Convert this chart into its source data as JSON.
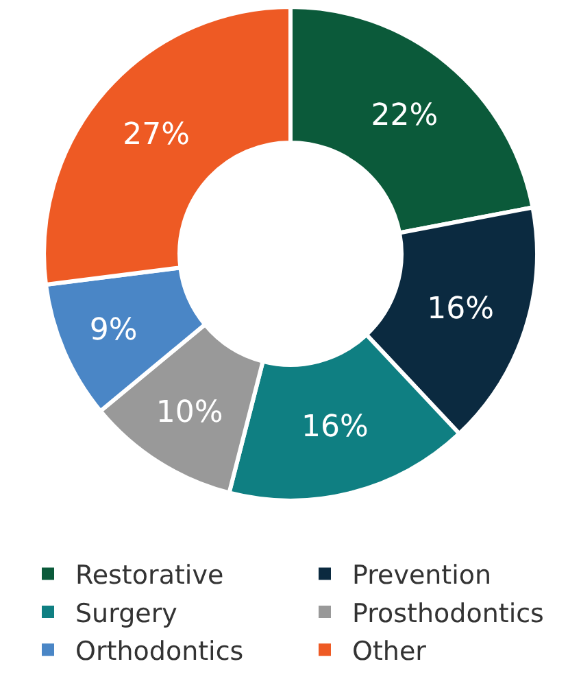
{
  "chart_data": {
    "type": "donut",
    "categories": [
      "Restorative",
      "Prevention",
      "Surgery",
      "Prosthodontics",
      "Orthodontics",
      "Other"
    ],
    "values": [
      22,
      16,
      16,
      10,
      9,
      27
    ],
    "colors": [
      "#0b5a3a",
      "#0b2a40",
      "#0f7f82",
      "#999999",
      "#4a86c6",
      "#ee5a24"
    ],
    "value_labels": [
      "22%",
      "16%",
      "16%",
      "10%",
      "9%",
      "27%"
    ],
    "legend": "bottom"
  }
}
